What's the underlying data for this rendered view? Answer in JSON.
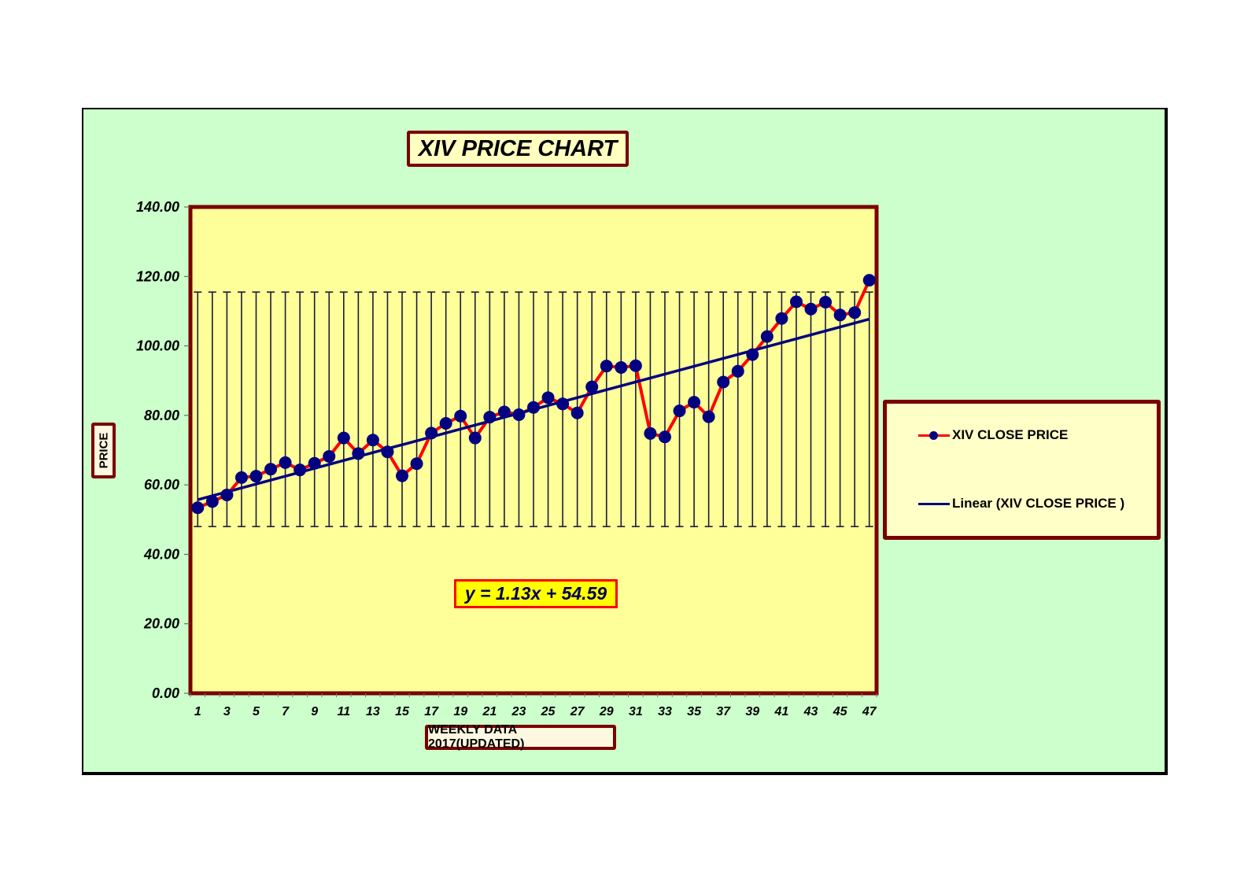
{
  "chart": {
    "title": "XIV PRICE CHART",
    "xlabel": "WEEKLY DATA 2017(UPDATED)",
    "ylabel": "PRICE",
    "equation": "y = 1.13x + 54.59",
    "legend": {
      "series_label": "XIV CLOSE PRICE",
      "trend_label": "Linear (XIV CLOSE PRICE )"
    },
    "colors": {
      "frame_bg": "#ccffcc",
      "plot_bg": "#ffff99",
      "border": "#7a0000",
      "series_line": "#ff0000",
      "marker": "#000080",
      "trendline": "#000080",
      "error_bar": "#1a1a3a"
    }
  },
  "chart_data": {
    "type": "line",
    "title": "XIV PRICE CHART",
    "xlabel": "WEEKLY DATA 2017(UPDATED)",
    "ylabel": "PRICE",
    "ylim": [
      0,
      140
    ],
    "yticks": [
      "0.00",
      "20.00",
      "40.00",
      "60.00",
      "80.00",
      "100.00",
      "120.00",
      "140.00"
    ],
    "xticks": [
      "1",
      "3",
      "5",
      "7",
      "9",
      "11",
      "13",
      "15",
      "17",
      "19",
      "21",
      "23",
      "25",
      "27",
      "29",
      "31",
      "33",
      "35",
      "37",
      "39",
      "41",
      "43",
      "45",
      "47"
    ],
    "x": [
      1,
      2,
      3,
      4,
      5,
      6,
      7,
      8,
      9,
      10,
      11,
      12,
      13,
      14,
      15,
      16,
      17,
      18,
      19,
      20,
      21,
      22,
      23,
      24,
      25,
      26,
      27,
      28,
      29,
      30,
      31,
      32,
      33,
      34,
      35,
      36,
      37,
      38,
      39,
      40,
      41,
      42,
      43,
      44,
      45,
      46,
      47
    ],
    "series": [
      {
        "name": "XIV CLOSE PRICE",
        "values": [
          53.4,
          55.2,
          57.1,
          62.1,
          62.5,
          64.5,
          66.4,
          64.3,
          66.2,
          68.2,
          73.5,
          69.0,
          72.9,
          69.5,
          62.6,
          66.1,
          74.9,
          77.7,
          79.8,
          73.5,
          79.5,
          81.0,
          80.2,
          82.3,
          85.1,
          83.3,
          80.7,
          88.2,
          94.2,
          93.8,
          94.3,
          74.8,
          73.8,
          81.3,
          83.8,
          79.6,
          89.6,
          92.7,
          97.5,
          102.7,
          107.9,
          112.7,
          110.6,
          112.6,
          108.9,
          109.6,
          118.9
        ]
      }
    ],
    "trendline": {
      "name": "Linear (XIV CLOSE PRICE )",
      "slope": 1.13,
      "intercept": 54.59
    },
    "error_bars": {
      "low": 48.0,
      "high": 115.5
    },
    "grid": false,
    "legend_position": "right"
  }
}
